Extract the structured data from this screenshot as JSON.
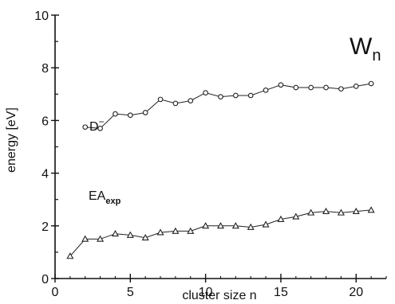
{
  "chart_data": {
    "type": "line",
    "title": "W",
    "title_subscript": "n",
    "xlabel": "cluster size n",
    "ylabel": "energy [eV]",
    "xlim": [
      0,
      22
    ],
    "ylim": [
      0,
      10
    ],
    "x_ticks": [
      0,
      5,
      10,
      15,
      20
    ],
    "y_ticks": [
      0,
      2,
      4,
      6,
      8,
      10
    ],
    "x_tick_labels": [
      "0",
      "5",
      "10",
      "15",
      "20"
    ],
    "y_tick_labels": [
      "0",
      "2",
      "4",
      "6",
      "8",
      "10"
    ],
    "grid": false,
    "legend": "none",
    "series": [
      {
        "label_text": "D",
        "label_superscript": "−",
        "marker": "circle",
        "color": "#222222",
        "x": [
          2,
          3,
          4,
          5,
          6,
          7,
          8,
          9,
          10,
          11,
          12,
          13,
          14,
          15,
          16,
          17,
          18,
          19,
          20,
          21
        ],
        "y": [
          5.75,
          5.7,
          6.25,
          6.2,
          6.3,
          6.8,
          6.65,
          6.75,
          7.05,
          6.9,
          6.95,
          6.95,
          7.15,
          7.35,
          7.25,
          7.25,
          7.25,
          7.2,
          7.3,
          7.4
        ]
      },
      {
        "label_text": "EA",
        "label_subscript": "exp",
        "marker": "triangle",
        "color": "#222222",
        "x": [
          1,
          2,
          3,
          4,
          5,
          6,
          7,
          8,
          9,
          10,
          11,
          12,
          13,
          14,
          15,
          16,
          17,
          18,
          19,
          20,
          21
        ],
        "y": [
          0.85,
          1.5,
          1.5,
          1.7,
          1.65,
          1.55,
          1.75,
          1.8,
          1.8,
          2.0,
          2.0,
          2.0,
          1.95,
          2.05,
          2.25,
          2.35,
          2.5,
          2.55,
          2.5,
          2.55,
          2.6
        ]
      }
    ]
  }
}
